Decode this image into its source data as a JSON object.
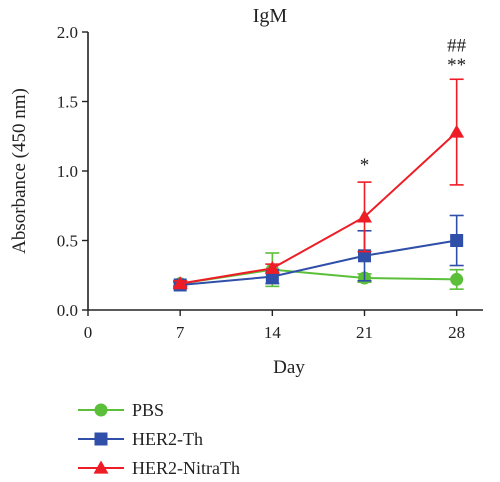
{
  "chart_data": {
    "type": "line",
    "title": "IgM",
    "xlabel": "Day",
    "ylabel": "Absorbance (450 nm)",
    "x": [
      7,
      14,
      21,
      28
    ],
    "xlim": [
      0,
      30
    ],
    "ylim": [
      0,
      2.0
    ],
    "xticks": [
      "0",
      "7",
      "14",
      "21",
      "28"
    ],
    "yticks": [
      "0.0",
      "0.5",
      "1.0",
      "1.5",
      "2.0"
    ],
    "series": [
      {
        "name": "PBS",
        "color": "#5bbf3a",
        "marker": "circle",
        "values": [
          0.19,
          0.29,
          0.23,
          0.22
        ],
        "errors": [
          0.02,
          0.12,
          0.03,
          0.07
        ]
      },
      {
        "name": "HER2-Th",
        "color": "#2f4fa8",
        "marker": "square",
        "values": [
          0.18,
          0.24,
          0.39,
          0.5
        ],
        "errors": [
          0.02,
          0.05,
          0.18,
          0.18
        ]
      },
      {
        "name": "HER2-NitraTh",
        "color": "#ee1c25",
        "marker": "triangle",
        "values": [
          0.19,
          0.3,
          0.67,
          1.28
        ],
        "errors": [
          0.02,
          0.03,
          0.25,
          0.38
        ]
      }
    ],
    "annotations": [
      {
        "x": 21,
        "y": 1.0,
        "text": "*"
      },
      {
        "x": 28,
        "y": 1.72,
        "text": "**"
      },
      {
        "x": 28,
        "y": 1.86,
        "text": "##"
      }
    ],
    "legend_position": "bottom-left"
  }
}
